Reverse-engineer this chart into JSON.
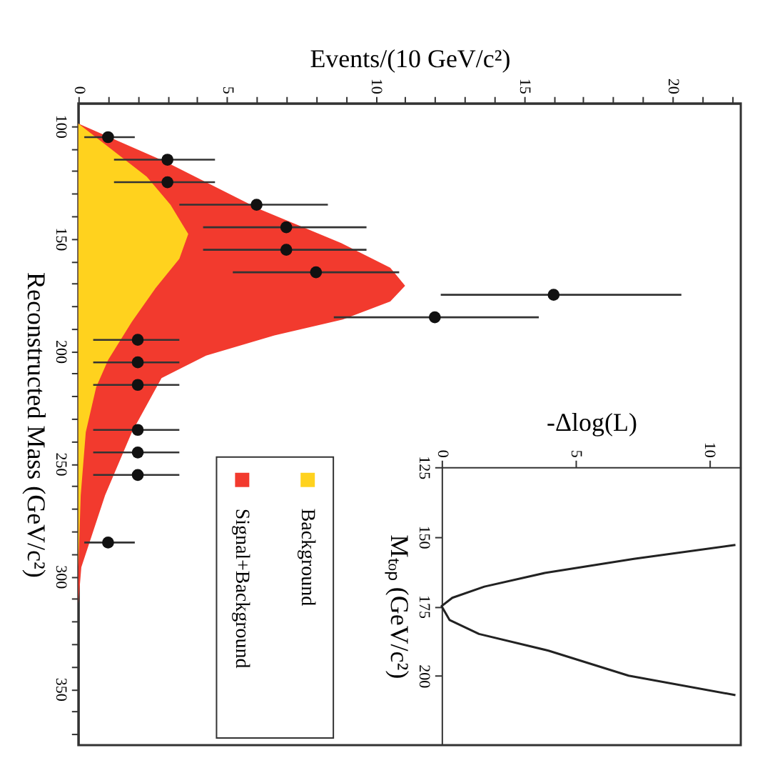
{
  "chart_data": [
    {
      "type": "scatter",
      "orientation": "horizontal",
      "xlabel": "Events/(10 GeV/c²)",
      "ylabel": "Reconstructed Mass (GeV/c²)",
      "xlim": [
        0,
        22.3
      ],
      "ylim": [
        375,
        90
      ],
      "xticks": [
        0,
        {
          "value": 1,
          "label": null
        },
        {
          "value": 2,
          "label": null
        },
        {
          "value": 3,
          "label": null
        },
        {
          "value": 4,
          "label": null
        },
        5,
        {
          "value": 6,
          "label": null
        },
        {
          "value": 7,
          "label": null
        },
        {
          "value": 8,
          "label": null
        },
        {
          "value": 9,
          "label": null
        },
        10,
        {
          "value": 11,
          "label": null
        },
        {
          "value": 12,
          "label": null
        },
        {
          "value": 13,
          "label": null
        },
        {
          "value": 14,
          "label": null
        },
        15,
        {
          "value": 16,
          "label": null
        },
        {
          "value": 17,
          "label": null
        },
        {
          "value": 18,
          "label": null
        },
        {
          "value": 19,
          "label": null
        },
        20,
        {
          "value": 21,
          "label": null
        },
        {
          "value": 22,
          "label": null
        }
      ],
      "yticks": [
        100,
        {
          "value": 110,
          "label": null
        },
        {
          "value": 120,
          "label": null
        },
        {
          "value": 130,
          "label": null
        },
        {
          "value": 140,
          "label": null
        },
        150,
        {
          "value": 160,
          "label": null
        },
        {
          "value": 170,
          "label": null
        },
        {
          "value": 180,
          "label": null
        },
        {
          "value": 190,
          "label": null
        },
        200,
        {
          "value": 210,
          "label": null
        },
        {
          "value": 220,
          "label": null
        },
        {
          "value": 230,
          "label": null
        },
        {
          "value": 240,
          "label": null
        },
        250,
        {
          "value": 260,
          "label": null
        },
        {
          "value": 270,
          "label": null
        },
        {
          "value": 280,
          "label": null
        },
        {
          "value": 290,
          "label": null
        },
        300,
        {
          "value": 310,
          "label": null
        },
        {
          "value": 320,
          "label": null
        },
        {
          "value": 330,
          "label": null
        },
        {
          "value": 340,
          "label": null
        },
        350,
        {
          "value": 360,
          "label": null
        },
        {
          "value": 370,
          "label": null
        }
      ],
      "grid": false,
      "legend": "bottom left",
      "series": [
        {
          "type": "area",
          "name": "Signal+Background",
          "color": "#f23a2e",
          "x": [
            99,
            116,
            137,
            152,
            163,
            171,
            178,
            186,
            193,
            202,
            212,
            236,
            264,
            296,
            312,
            375
          ],
          "values": [
            0,
            2.95,
            6.1,
            8.85,
            10.5,
            11.0,
            10.5,
            8.9,
            6.6,
            4.3,
            2.8,
            1.8,
            0.9,
            0.1,
            0,
            0
          ]
        },
        {
          "type": "area",
          "name": "Background",
          "color": "#ffd21e",
          "x": [
            99,
            122.5,
            135,
            148,
            159,
            172,
            187,
            204,
            216,
            236,
            264,
            296,
            375
          ],
          "values": [
            0,
            2.3,
            3.1,
            3.7,
            3.4,
            2.6,
            1.8,
            1.0,
            0.6,
            0.25,
            0.08,
            0,
            0
          ]
        },
        {
          "type": "scatter",
          "color": "#111111",
          "marker": "circle",
          "x": [
            105,
            115,
            125,
            135,
            145,
            155,
            165,
            175,
            185,
            195,
            205,
            215,
            235,
            245,
            255,
            285
          ],
          "values": [
            1,
            3,
            3,
            6,
            7,
            7,
            8,
            16,
            12,
            2,
            2,
            2,
            2,
            2,
            2,
            1
          ],
          "errors": [
            [
              0.2,
              1.9
            ],
            [
              1.2,
              4.6
            ],
            [
              1.2,
              4.6
            ],
            [
              3.4,
              8.4
            ],
            [
              4.2,
              9.7
            ],
            [
              4.2,
              9.7
            ],
            [
              5.2,
              10.8
            ],
            [
              12.2,
              20.3
            ],
            [
              8.6,
              15.5
            ],
            [
              0.5,
              3.4
            ],
            [
              0.5,
              3.4
            ],
            [
              0.5,
              3.4
            ],
            [
              0.5,
              3.4
            ],
            [
              0.5,
              3.4
            ],
            [
              0.5,
              3.4
            ],
            [
              0.2,
              1.9
            ]
          ]
        }
      ]
    },
    {
      "type": "line",
      "orientation": "horizontal",
      "xlabel": "-Δlog(L)",
      "ylabel": "Mₜₒₚ (GeV/c²)",
      "xlim": [
        0,
        11.2
      ],
      "ylim": [
        225,
        125
      ],
      "xticks": [
        0,
        5,
        10
      ],
      "yticks": [
        125,
        150,
        175,
        200
      ],
      "grid": false,
      "series": [
        {
          "color": "#222222",
          "x": [
            153,
            158,
            163,
            168,
            172,
            175,
            180,
            185,
            191,
            200,
            207
          ],
          "values": [
            11,
            7.2,
            3.9,
            1.6,
            0.4,
            0,
            0.3,
            1.4,
            4.0,
            7.0,
            11
          ]
        }
      ]
    }
  ]
}
